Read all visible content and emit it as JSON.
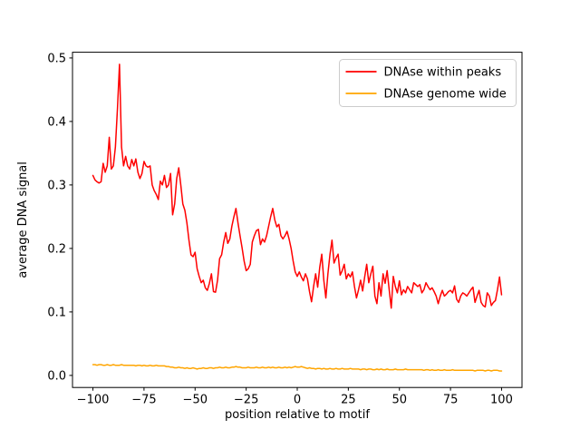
{
  "figure": {
    "background": "#ffffff",
    "axis_color": "#000000"
  },
  "chart_data": {
    "type": "line",
    "title": "",
    "xlabel": "position relative to motif",
    "ylabel": "average DNA signal",
    "xlim": [
      -110,
      110
    ],
    "ylim": [
      -0.019,
      0.509
    ],
    "grid": false,
    "xticks": {
      "values": [
        -100,
        -75,
        -50,
        -25,
        0,
        25,
        50,
        75,
        100
      ],
      "labels": [
        "−100",
        "−75",
        "−50",
        "−25",
        "0",
        "25",
        "50",
        "75",
        "100"
      ]
    },
    "yticks": {
      "values": [
        0.0,
        0.1,
        0.2,
        0.3,
        0.4,
        0.5
      ],
      "labels": [
        "0.0",
        "0.1",
        "0.2",
        "0.3",
        "0.4",
        "0.5"
      ]
    },
    "legend": {
      "position": "upper right",
      "border_color": "#cccccc",
      "entries": [
        {
          "label": "DNAse within peaks",
          "color": "#ff0000"
        },
        {
          "label": "DNAse genome wide",
          "color": "#ffa500"
        }
      ]
    },
    "x": [
      -100,
      -99,
      -98,
      -97,
      -96,
      -95,
      -94,
      -93,
      -92,
      -91,
      -90,
      -89,
      -88,
      -87,
      -86,
      -85,
      -84,
      -83,
      -82,
      -81,
      -80,
      -79,
      -78,
      -77,
      -76,
      -75,
      -74,
      -73,
      -72,
      -71,
      -70,
      -69,
      -68,
      -67,
      -66,
      -65,
      -64,
      -63,
      -62,
      -61,
      -60,
      -59,
      -58,
      -57,
      -56,
      -55,
      -54,
      -53,
      -52,
      -51,
      -50,
      -49,
      -48,
      -47,
      -46,
      -45,
      -44,
      -43,
      -42,
      -41,
      -40,
      -39,
      -38,
      -37,
      -36,
      -35,
      -34,
      -33,
      -32,
      -31,
      -30,
      -29,
      -28,
      -27,
      -26,
      -25,
      -24,
      -23,
      -22,
      -21,
      -20,
      -19,
      -18,
      -17,
      -16,
      -15,
      -14,
      -13,
      -12,
      -11,
      -10,
      -9,
      -8,
      -7,
      -6,
      -5,
      -4,
      -3,
      -2,
      -1,
      0,
      1,
      2,
      3,
      4,
      5,
      6,
      7,
      8,
      9,
      10,
      11,
      12,
      13,
      14,
      15,
      16,
      17,
      18,
      19,
      20,
      21,
      22,
      23,
      24,
      25,
      26,
      27,
      28,
      29,
      30,
      31,
      32,
      33,
      34,
      35,
      36,
      37,
      38,
      39,
      40,
      41,
      42,
      43,
      44,
      45,
      46,
      47,
      48,
      49,
      50,
      51,
      52,
      53,
      54,
      55,
      56,
      57,
      58,
      59,
      60,
      61,
      62,
      63,
      64,
      65,
      66,
      67,
      68,
      69,
      70,
      71,
      72,
      73,
      74,
      75,
      76,
      77,
      78,
      79,
      80,
      81,
      82,
      83,
      84,
      85,
      86,
      87,
      88,
      89,
      90,
      91,
      92,
      93,
      94,
      95,
      96,
      97,
      98,
      99,
      100
    ],
    "series": [
      {
        "name": "DNAse within peaks",
        "color": "#ff0000",
        "values": [
          0.315,
          0.308,
          0.305,
          0.303,
          0.305,
          0.334,
          0.32,
          0.33,
          0.375,
          0.325,
          0.33,
          0.36,
          0.42,
          0.49,
          0.36,
          0.33,
          0.345,
          0.33,
          0.325,
          0.34,
          0.33,
          0.341,
          0.32,
          0.31,
          0.318,
          0.337,
          0.33,
          0.328,
          0.33,
          0.3,
          0.291,
          0.285,
          0.277,
          0.306,
          0.3,
          0.315,
          0.296,
          0.3,
          0.318,
          0.253,
          0.27,
          0.31,
          0.327,
          0.3,
          0.27,
          0.26,
          0.24,
          0.213,
          0.19,
          0.187,
          0.194,
          0.168,
          0.156,
          0.146,
          0.15,
          0.138,
          0.134,
          0.145,
          0.16,
          0.132,
          0.131,
          0.15,
          0.184,
          0.19,
          0.21,
          0.225,
          0.208,
          0.215,
          0.235,
          0.25,
          0.263,
          0.24,
          0.22,
          0.201,
          0.18,
          0.165,
          0.168,
          0.175,
          0.21,
          0.22,
          0.228,
          0.23,
          0.206,
          0.215,
          0.21,
          0.22,
          0.235,
          0.25,
          0.263,
          0.245,
          0.234,
          0.238,
          0.22,
          0.215,
          0.22,
          0.227,
          0.215,
          0.2,
          0.18,
          0.163,
          0.156,
          0.163,
          0.155,
          0.149,
          0.16,
          0.152,
          0.132,
          0.116,
          0.14,
          0.16,
          0.139,
          0.17,
          0.191,
          0.15,
          0.122,
          0.16,
          0.19,
          0.213,
          0.177,
          0.185,
          0.191,
          0.158,
          0.165,
          0.175,
          0.152,
          0.16,
          0.155,
          0.163,
          0.14,
          0.122,
          0.135,
          0.15,
          0.133,
          0.155,
          0.175,
          0.146,
          0.16,
          0.172,
          0.125,
          0.113,
          0.146,
          0.125,
          0.16,
          0.145,
          0.165,
          0.135,
          0.106,
          0.156,
          0.14,
          0.13,
          0.149,
          0.127,
          0.135,
          0.13,
          0.14,
          0.135,
          0.13,
          0.146,
          0.143,
          0.14,
          0.143,
          0.13,
          0.135,
          0.146,
          0.14,
          0.135,
          0.138,
          0.132,
          0.125,
          0.113,
          0.125,
          0.134,
          0.125,
          0.128,
          0.132,
          0.134,
          0.13,
          0.141,
          0.12,
          0.115,
          0.125,
          0.13,
          0.128,
          0.125,
          0.13,
          0.135,
          0.139,
          0.115,
          0.125,
          0.134,
          0.115,
          0.11,
          0.108,
          0.13,
          0.125,
          0.11,
          0.115,
          0.118,
          0.135,
          0.155,
          0.127
        ]
      },
      {
        "name": "DNAse genome wide",
        "color": "#ffa500",
        "values": [
          0.017,
          0.017,
          0.016,
          0.017,
          0.017,
          0.016,
          0.016,
          0.017,
          0.016,
          0.016,
          0.017,
          0.016,
          0.016,
          0.016,
          0.017,
          0.016,
          0.016,
          0.016,
          0.016,
          0.016,
          0.016,
          0.015,
          0.016,
          0.016,
          0.015,
          0.016,
          0.015,
          0.015,
          0.016,
          0.015,
          0.015,
          0.016,
          0.015,
          0.015,
          0.015,
          0.015,
          0.014,
          0.014,
          0.013,
          0.013,
          0.012,
          0.012,
          0.013,
          0.012,
          0.012,
          0.011,
          0.012,
          0.011,
          0.011,
          0.012,
          0.011,
          0.01,
          0.011,
          0.011,
          0.012,
          0.011,
          0.011,
          0.012,
          0.012,
          0.011,
          0.012,
          0.012,
          0.013,
          0.012,
          0.012,
          0.013,
          0.012,
          0.012,
          0.013,
          0.013,
          0.014,
          0.013,
          0.013,
          0.012,
          0.012,
          0.012,
          0.013,
          0.012,
          0.012,
          0.012,
          0.013,
          0.012,
          0.012,
          0.013,
          0.012,
          0.012,
          0.013,
          0.012,
          0.013,
          0.012,
          0.012,
          0.013,
          0.012,
          0.012,
          0.013,
          0.012,
          0.013,
          0.012,
          0.013,
          0.014,
          0.013,
          0.013,
          0.014,
          0.013,
          0.012,
          0.011,
          0.012,
          0.011,
          0.011,
          0.01,
          0.011,
          0.011,
          0.01,
          0.011,
          0.01,
          0.01,
          0.011,
          0.01,
          0.01,
          0.011,
          0.01,
          0.01,
          0.011,
          0.01,
          0.01,
          0.01,
          0.011,
          0.01,
          0.01,
          0.01,
          0.01,
          0.009,
          0.01,
          0.01,
          0.009,
          0.01,
          0.01,
          0.009,
          0.009,
          0.01,
          0.009,
          0.01,
          0.009,
          0.009,
          0.01,
          0.009,
          0.009,
          0.009,
          0.01,
          0.009,
          0.009,
          0.009,
          0.009,
          0.01,
          0.009,
          0.009,
          0.009,
          0.009,
          0.009,
          0.009,
          0.009,
          0.009,
          0.008,
          0.009,
          0.009,
          0.008,
          0.009,
          0.008,
          0.008,
          0.009,
          0.008,
          0.008,
          0.009,
          0.008,
          0.008,
          0.008,
          0.009,
          0.008,
          0.008,
          0.008,
          0.008,
          0.008,
          0.008,
          0.008,
          0.008,
          0.008,
          0.008,
          0.007,
          0.008,
          0.008,
          0.008,
          0.008,
          0.007,
          0.008,
          0.008,
          0.007,
          0.008,
          0.008,
          0.008,
          0.007,
          0.007
        ]
      }
    ]
  }
}
